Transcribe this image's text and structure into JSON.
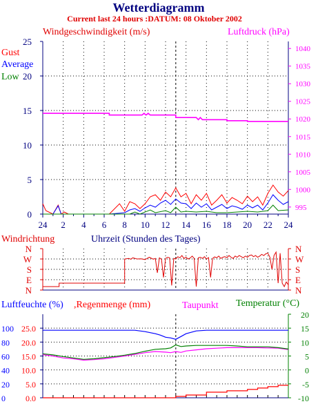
{
  "header": {
    "title": "Wetterdiagramm",
    "subtitle": "Current last 24 hours :DATUM: 08 Oktober 2002"
  },
  "colors": {
    "title": "#000080",
    "subtitle": "#e00000",
    "gust": "#ff0000",
    "average": "#0000ff",
    "low": "#008000",
    "pressure": "#ff00ff",
    "humidity": "#0000ff",
    "rain": "#ff0000",
    "dewpoint": "#ff00ff",
    "temperature": "#008000",
    "direction": "#e00000",
    "axis_text": "#000080",
    "grid": "#000000"
  },
  "panels": {
    "wind": {
      "title_left": "Windgeschwindigkeit (m/s)",
      "title_right": "Luftdruck (hPa)",
      "legend": [
        "Gust",
        "Average",
        "Low"
      ],
      "left_ticks": [
        "0",
        "5",
        "10",
        "15",
        "20",
        "25"
      ],
      "right_ticks": [
        "995",
        "1000",
        "1005",
        "1010",
        "1015",
        "1020",
        "1025",
        "1030",
        "1035",
        "1040"
      ],
      "x_ticks": [
        "24",
        "2",
        "4",
        "6",
        "8",
        "10",
        "12",
        "14",
        "16",
        "18",
        "20",
        "22",
        "24"
      ]
    },
    "direction": {
      "title_left": "Windrichtung",
      "title_center": "Uhrzeit (Stunden des Tages)",
      "ticks": [
        "N",
        "W",
        "S",
        "E",
        "N"
      ]
    },
    "climate": {
      "title_humidity": "Luftfeuchte (%)",
      "title_rain": ",Regenmenge (mm)",
      "title_dewpoint": "Taupunkt",
      "title_temp": "Temperatur (°C)",
      "humidity_ticks": [
        "0",
        "20",
        "40",
        "60",
        "80",
        "100"
      ],
      "rain_ticks": [
        "0.0",
        "5.0",
        "10.0",
        "15.0",
        "20.0",
        "25.0"
      ],
      "temp_ticks": [
        "-10",
        "-5",
        "0",
        "5",
        "10",
        "15",
        "20"
      ]
    }
  },
  "chart_data": [
    {
      "type": "line",
      "panel": "wind",
      "xlim": [
        0,
        24
      ],
      "ylim": [
        0,
        25
      ],
      "series": [
        {
          "name": "Gust",
          "axis": "left",
          "x": [
            0,
            0.3,
            1,
            1.5,
            1.8,
            2.1,
            2.5,
            4,
            6.5,
            7.5,
            8,
            8.5,
            9,
            9.5,
            10,
            10.5,
            11,
            11.5,
            12,
            12.5,
            13,
            13.5,
            14,
            14.5,
            15,
            15.5,
            16,
            16.5,
            17,
            17.5,
            18,
            18.5,
            19,
            19.5,
            20,
            20.5,
            21,
            21.5,
            22,
            22.5,
            23,
            23.5,
            24
          ],
          "values": [
            1.5,
            0.5,
            0,
            1.3,
            0,
            0.3,
            0,
            0,
            0,
            1.5,
            0.4,
            1.8,
            1.5,
            0.8,
            1.5,
            2.5,
            2.8,
            2,
            3.2,
            2.5,
            3.8,
            2.5,
            3,
            1.5,
            2.8,
            2,
            3,
            1.3,
            2,
            2.8,
            1.6,
            2.4,
            2,
            1.5,
            2.6,
            1.8,
            2.5,
            1.3,
            3,
            4.2,
            3.2,
            2.6,
            3.4
          ]
        },
        {
          "name": "Average",
          "axis": "left",
          "x": [
            0,
            1,
            1.5,
            1.8,
            2,
            6.5,
            8,
            8.5,
            9,
            9.5,
            10,
            10.5,
            11,
            11.5,
            12,
            12.5,
            13,
            13.5,
            14,
            14.5,
            15,
            15.5,
            16,
            16.5,
            17,
            17.5,
            18,
            18.5,
            19,
            19.5,
            20,
            20.5,
            21,
            21.5,
            22,
            22.5,
            23,
            23.5,
            24
          ],
          "values": [
            0,
            0,
            1.2,
            0,
            0,
            0,
            0.2,
            0.6,
            0.8,
            0.4,
            0.9,
            1.3,
            1,
            1.6,
            2,
            1.4,
            2.2,
            1.6,
            1.5,
            0.8,
            1.6,
            1,
            1.5,
            0.6,
            1,
            1.4,
            0.8,
            1.2,
            1,
            0.7,
            1.3,
            0.9,
            1.3,
            0.6,
            1.6,
            2.8,
            2,
            1.4,
            1.8
          ]
        },
        {
          "name": "Low",
          "axis": "left",
          "x": [
            0,
            8.5,
            9,
            9.5,
            10.5,
            11,
            12,
            12.5,
            13,
            13.5,
            14,
            15,
            16,
            17,
            18,
            19,
            20,
            21,
            22,
            22.5,
            23,
            24
          ],
          "values": [
            0,
            0,
            0.3,
            0,
            0.6,
            0.2,
            0.5,
            0.2,
            1,
            0.3,
            0.4,
            0.3,
            0.4,
            0.2,
            0.2,
            0.3,
            0.4,
            0.3,
            0.5,
            1.3,
            0.5,
            0.6
          ]
        },
        {
          "name": "Luftdruck (hPa)",
          "axis": "right",
          "x": [
            0,
            6.5,
            6.5,
            9.7,
            9.9,
            10.1,
            10.3,
            10.5,
            10.7,
            13,
            13,
            15,
            15.2,
            15.4,
            15.6,
            18,
            18,
            20,
            20,
            24
          ],
          "values": [
            1021.6,
            1021.6,
            1021.1,
            1021.1,
            1021.6,
            1021.1,
            1021.6,
            1021.1,
            1021.1,
            1021.1,
            1020.4,
            1020.4,
            1019.8,
            1020.4,
            1019.8,
            1019.8,
            1019.5,
            1019.5,
            1019.3,
            1019.3
          ]
        }
      ],
      "ylim_right": [
        993,
        1042
      ]
    },
    {
      "type": "line",
      "panel": "direction",
      "xlim": [
        0,
        24
      ],
      "y_categories": [
        "N",
        "E",
        "S",
        "W",
        "N"
      ],
      "series": [
        {
          "name": "Windrichtung",
          "x": [
            0,
            1.6,
            1.6,
            8,
            8,
            8.4,
            8.6,
            8.8,
            9.2,
            9.6,
            10,
            10.2,
            10.4,
            10.8,
            11,
            11.2,
            11.4,
            11.6,
            11.8,
            12,
            12.2,
            12.4,
            12.6,
            12.8,
            13,
            13.2,
            13.4,
            13.6,
            13.8,
            14,
            14.2,
            14.4,
            14.6,
            14.8,
            15,
            15.2,
            15.4,
            15.6,
            15.8,
            16,
            16.2,
            16.4,
            16.6,
            16.8,
            17,
            17.2,
            17.4,
            17.6,
            17.8,
            18,
            18.2,
            18.4,
            18.6,
            18.8,
            19,
            19.2,
            19.4,
            19.6,
            19.8,
            20,
            20.2,
            20.4,
            20.6,
            20.8,
            21,
            21.2,
            21.4,
            21.6,
            21.8,
            22,
            22.2,
            22.4,
            22.6,
            22.8,
            23,
            23.2,
            23.4,
            23.6,
            23.8,
            24
          ],
          "values": [
            30,
            30,
            60,
            60,
            270,
            275,
            268,
            280,
            270,
            272,
            265,
            275,
            285,
            268,
            275,
            150,
            280,
            268,
            110,
            275,
            285,
            280,
            40,
            275,
            270,
            290,
            280,
            300,
            275,
            285,
            270,
            278,
            295,
            275,
            30,
            280,
            285,
            275,
            290,
            270,
            282,
            110,
            275,
            288,
            280,
            295,
            275,
            285,
            290,
            280,
            300,
            285,
            275,
            295,
            285,
            300,
            290,
            280,
            295,
            285,
            300,
            305,
            290,
            300,
            285,
            295,
            310,
            300,
            315,
            320,
            285,
            180,
            300,
            330,
            60,
            320,
            60,
            30,
            70,
            45
          ]
        }
      ]
    },
    {
      "type": "line",
      "panel": "climate",
      "xlim": [
        0,
        24
      ],
      "series": [
        {
          "name": "Luftfeuchte (%)",
          "axis": "humidity",
          "x": [
            0,
            2,
            4,
            6,
            8,
            9,
            10,
            11,
            11.5,
            12,
            12.5,
            13,
            13.5,
            14,
            15,
            16,
            17,
            18,
            19,
            20,
            21,
            22,
            23,
            24
          ],
          "values": [
            97,
            97,
            97,
            97,
            97,
            97,
            95,
            92,
            90,
            87,
            86,
            84,
            88,
            92,
            96,
            97,
            97,
            97,
            97,
            97,
            97,
            97,
            97,
            97
          ]
        },
        {
          "name": "Regenmenge (mm)",
          "axis": "rain",
          "x": [
            0,
            13,
            13,
            14,
            14,
            16,
            16,
            18,
            18,
            20,
            20,
            21,
            21,
            22,
            22,
            23,
            23,
            24
          ],
          "values": [
            0,
            0,
            0.5,
            0.5,
            1,
            1,
            2,
            2,
            2.5,
            2.5,
            3,
            3,
            3.5,
            3.5,
            4,
            4,
            4.5,
            4.5
          ]
        },
        {
          "name": "Taupunkt",
          "axis": "temp",
          "x": [
            0,
            1,
            2,
            3,
            4,
            5,
            6,
            7,
            8,
            9,
            10,
            11,
            12,
            12.5,
            13,
            13.5,
            14,
            15,
            16,
            17,
            18,
            19,
            20,
            21,
            22,
            23,
            24
          ],
          "values": [
            5.5,
            5,
            4.3,
            4,
            3.5,
            3.7,
            4,
            4.5,
            5,
            5.6,
            6.2,
            6.6,
            6.4,
            6.2,
            6.6,
            6.3,
            6.8,
            7.2,
            7.6,
            7.8,
            8,
            8,
            8,
            8,
            7.9,
            7.8,
            7.3
          ]
        },
        {
          "name": "Temperatur (°C)",
          "axis": "temp",
          "x": [
            0,
            1,
            2,
            3,
            4,
            5,
            6,
            7,
            8,
            9,
            10,
            11,
            12,
            12.5,
            13,
            13.5,
            14,
            15,
            16,
            17,
            18,
            19,
            20,
            21,
            22,
            23,
            24
          ],
          "values": [
            5.8,
            5.4,
            4.8,
            4.3,
            3.8,
            4,
            4.4,
            4.8,
            5.3,
            5.9,
            6.7,
            7.4,
            7.6,
            7.9,
            9,
            8.4,
            8.6,
            8.8,
            8.8,
            8.8,
            8.8,
            8.6,
            8.3,
            8.3,
            8.3,
            8,
            7.5
          ]
        }
      ]
    }
  ]
}
